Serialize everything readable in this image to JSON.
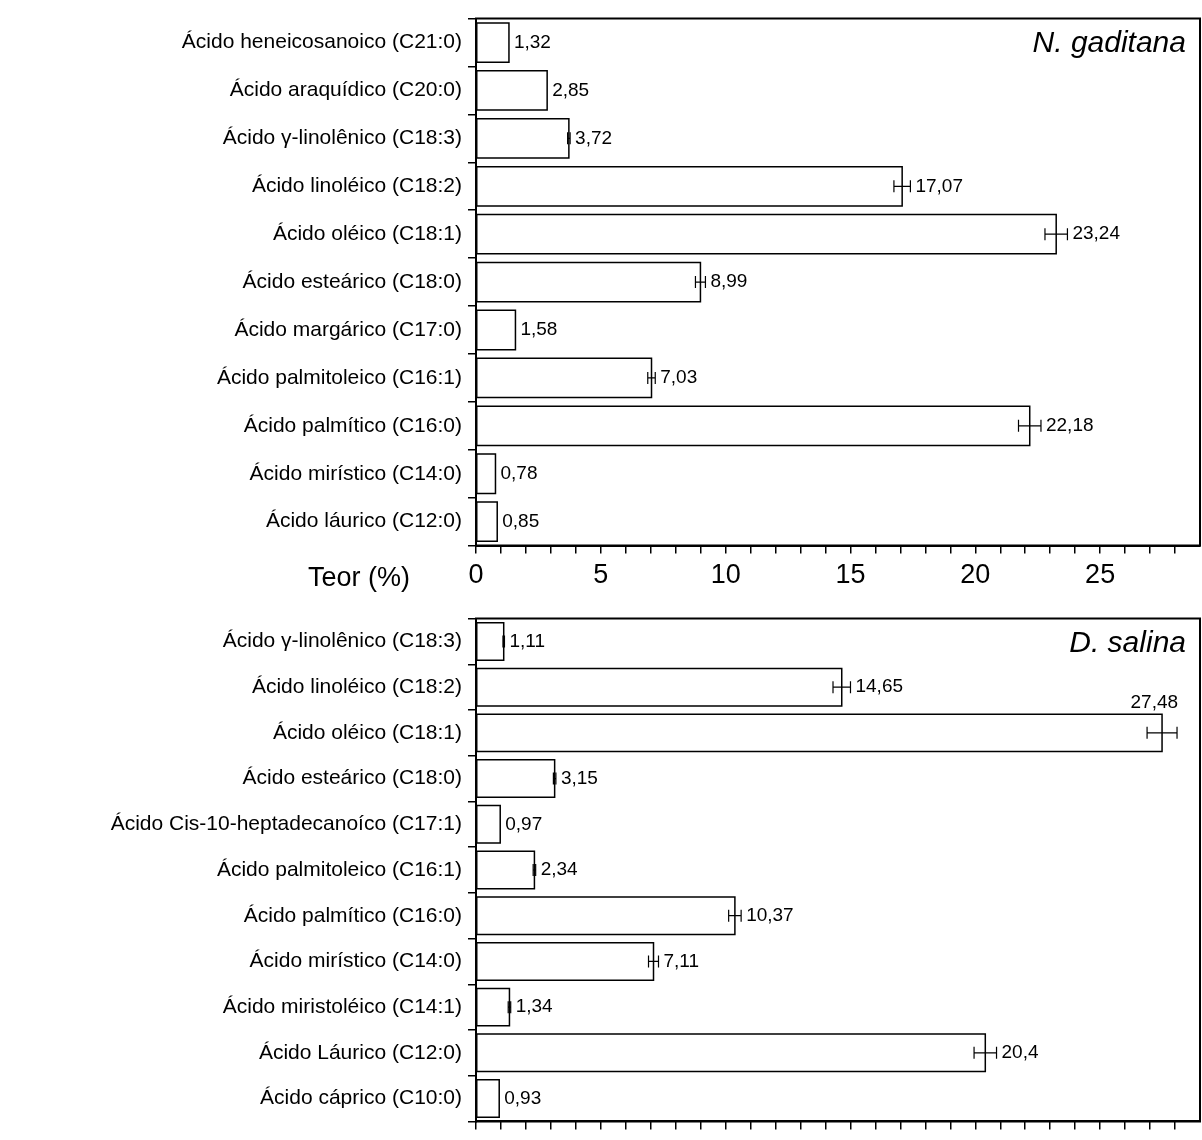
{
  "chart_data": [
    {
      "type": "bar",
      "orientation": "horizontal",
      "xlabel": "Teor (%)",
      "annotations": [
        "N. gaditana"
      ],
      "categories": [
        "Ácido heneicosanoico (C21:0)",
        "Ácido araquídico (C20:0)",
        "Ácido γ-linolênico (C18:3)",
        "Ácido linoléico (C18:2)",
        "Ácido oléico (C18:1)",
        "Ácido esteárico (C18:0)",
        "Ácido margárico (C17:0)",
        "Ácido palmitoleico (C16:1)",
        "Ácido palmítico (C16:0)",
        "Ácido mirístico (C14:0)",
        "Ácido láurico (C12:0)"
      ],
      "values": [
        1.32,
        2.85,
        3.72,
        17.07,
        23.24,
        8.99,
        1.58,
        7.03,
        22.18,
        0.78,
        0.85
      ],
      "value_labels": [
        "1,32",
        "2,85",
        "3,72",
        "17,07",
        "23,24",
        "8,99",
        "1,58",
        "7,03",
        "22,18",
        "0,78",
        "0,85"
      ],
      "errors": [
        null,
        null,
        0.05,
        0.33,
        0.45,
        0.2,
        null,
        0.15,
        0.45,
        null,
        null
      ],
      "color": "#ffffff",
      "xlim": [
        0,
        29
      ],
      "xticks": [
        0,
        {
          "value": 1,
          "label": null
        },
        {
          "value": 2,
          "label": null
        },
        {
          "value": 3,
          "label": null
        },
        {
          "value": 4,
          "label": null
        },
        5,
        {
          "value": 6,
          "label": null
        },
        {
          "value": 7,
          "label": null
        },
        {
          "value": 8,
          "label": null
        },
        {
          "value": 9,
          "label": null
        },
        10,
        {
          "value": 11,
          "label": null
        },
        {
          "value": 12,
          "label": null
        },
        {
          "value": 13,
          "label": null
        },
        {
          "value": 14,
          "label": null
        },
        15,
        {
          "value": 16,
          "label": null
        },
        {
          "value": 17,
          "label": null
        },
        {
          "value": 18,
          "label": null
        },
        {
          "value": 19,
          "label": null
        },
        20,
        {
          "value": 21,
          "label": null
        },
        {
          "value": 22,
          "label": null
        },
        {
          "value": 23,
          "label": null
        },
        {
          "value": 24,
          "label": null
        },
        25,
        {
          "value": 26,
          "label": null
        },
        {
          "value": 27,
          "label": null
        },
        {
          "value": 28,
          "label": null
        }
      ],
      "grid": false,
      "legend": false
    },
    {
      "type": "bar",
      "orientation": "horizontal",
      "annotations": [
        "D. salina"
      ],
      "tick_labels": "y",
      "categories": [
        "Ácido γ-linolênico (C18:3)",
        "Ácido linoléico (C18:2)",
        "Ácido oléico (C18:1)",
        "Ácido esteárico (C18:0)",
        "Ácido Cis-10-heptadecanoíco (C17:1)",
        "Ácido palmitoleico (C16:1)",
        "Ácido palmítico (C16:0)",
        "Ácido mirístico (C14:0)",
        "Ácido miristoléico (C14:1)",
        "Ácido Láurico (C12:0)",
        "Ácido cáprico (C10:0)"
      ],
      "values": [
        1.11,
        14.65,
        27.48,
        3.15,
        0.97,
        2.34,
        10.37,
        7.11,
        1.34,
        20.4,
        0.93
      ],
      "value_labels": [
        "1,11",
        "14,65",
        "27,48",
        "3,15",
        "0,97",
        "2,34",
        "10,37",
        "7,11",
        "1,34",
        "20,4",
        "0,93"
      ],
      "errors": [
        0.03,
        0.35,
        0.6,
        0.05,
        null,
        0.05,
        0.25,
        0.2,
        0.05,
        0.45,
        null
      ],
      "color": "#ffffff",
      "xlim": [
        0,
        29
      ],
      "xticks": [
        0,
        {
          "value": 1,
          "label": null
        },
        {
          "value": 2,
          "label": null
        },
        {
          "value": 3,
          "label": null
        },
        {
          "value": 4,
          "label": null
        },
        5,
        {
          "value": 6,
          "label": null
        },
        {
          "value": 7,
          "label": null
        },
        {
          "value": 8,
          "label": null
        },
        {
          "value": 9,
          "label": null
        },
        10,
        {
          "value": 11,
          "label": null
        },
        {
          "value": 12,
          "label": null
        },
        {
          "value": 13,
          "label": null
        },
        {
          "value": 14,
          "label": null
        },
        15,
        {
          "value": 16,
          "label": null
        },
        {
          "value": 17,
          "label": null
        },
        {
          "value": 18,
          "label": null
        },
        {
          "value": 19,
          "label": null
        },
        20,
        {
          "value": 21,
          "label": null
        },
        {
          "value": 22,
          "label": null
        },
        {
          "value": 23,
          "label": null
        },
        {
          "value": 24,
          "label": null
        },
        25,
        {
          "value": 26,
          "label": null
        },
        {
          "value": 27,
          "label": null
        },
        {
          "value": 28,
          "label": null
        }
      ],
      "grid": false,
      "legend": false
    }
  ]
}
